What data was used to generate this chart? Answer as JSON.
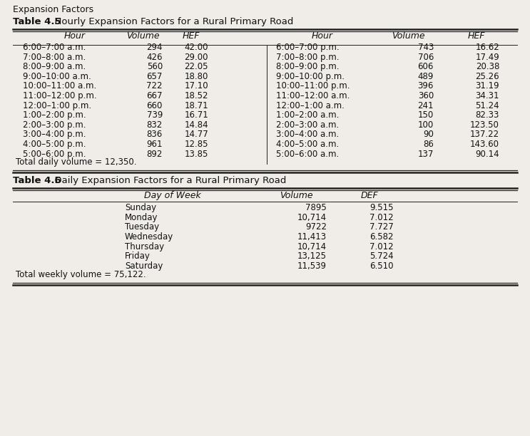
{
  "page_title": "Expansion Factors",
  "table45_title_bold": "Table 4.5",
  "table45_title_rest": "  Hourly Expansion Factors for a Rural Primary Road",
  "table45_headers_left": [
    "Hour",
    "Volume",
    "HEF"
  ],
  "table45_headers_right": [
    "Hour",
    "Volume",
    "HEF"
  ],
  "table45_left": [
    [
      "6:00–7:00 a.m.",
      "294",
      "42.00"
    ],
    [
      "7:00–8:00 a.m.",
      "426",
      "29.00"
    ],
    [
      "8:00–9:00 a.m.",
      "560",
      "22.05"
    ],
    [
      "9:00–10:00 a.m.",
      "657",
      "18.80"
    ],
    [
      "10:00–11:00 a.m.",
      "722",
      "17.10"
    ],
    [
      "11:00–12:00 p.m.",
      "667",
      "18.52"
    ],
    [
      "12:00–1:00 p.m.",
      "660",
      "18.71"
    ],
    [
      "1:00–2:00 p.m.",
      "739",
      "16.71"
    ],
    [
      "2:00–3:00 p.m.",
      "832",
      "14.84"
    ],
    [
      "3:00–4:00 p.m.",
      "836",
      "14.77"
    ],
    [
      "4:00–5:00 p.m.",
      "961",
      "12.85"
    ],
    [
      "5:00–6:00 p.m.",
      "892",
      "13.85"
    ]
  ],
  "table45_right": [
    [
      "6:00–7:00 p.m.",
      "743",
      "16.62"
    ],
    [
      "7:00–8:00 p.m.",
      "706",
      "17.49"
    ],
    [
      "8:00–9:00 p.m.",
      "606",
      "20.38"
    ],
    [
      "9:00–10:00 p.m.",
      "489",
      "25.26"
    ],
    [
      "10:00–11:00 p.m.",
      "396",
      "31.19"
    ],
    [
      "11:00–12:00 a.m.",
      "360",
      "34.31"
    ],
    [
      "12:00–1:00 a.m.",
      "241",
      "51.24"
    ],
    [
      "1:00–2:00 a.m.",
      "150",
      "82.33"
    ],
    [
      "2:00–3:00 a.m.",
      "100",
      "123.50"
    ],
    [
      "3:00–4:00 a.m.",
      "90",
      "137.22"
    ],
    [
      "4:00–5:00 a.m.",
      "86",
      "143.60"
    ],
    [
      "5:00–6:00 a.m.",
      "137",
      "90.14"
    ]
  ],
  "table45_footer": "Total daily volume = 12,350.",
  "table46_title_bold": "Table 4.6",
  "table46_title_rest": "  Daily Expansion Factors for a Rural Primary Road",
  "table46_headers": [
    "Day of Week",
    "Volume",
    "DEF"
  ],
  "table46_data": [
    [
      "Sunday",
      "7895",
      "9.515"
    ],
    [
      "Monday",
      "10,714",
      "7.012"
    ],
    [
      "Tuesday",
      "9722",
      "7.727"
    ],
    [
      "Wednesday",
      "11,413",
      "6.582"
    ],
    [
      "Thursday",
      "10,714",
      "7.012"
    ],
    [
      "Friday",
      "13,125",
      "5.724"
    ],
    [
      "Saturday",
      "11,539",
      "6.510"
    ]
  ],
  "table46_footer": "Total weekly volume = 75,122.",
  "bg_color": "#f0ede8",
  "text_color": "#111111",
  "line_color": "#222222"
}
